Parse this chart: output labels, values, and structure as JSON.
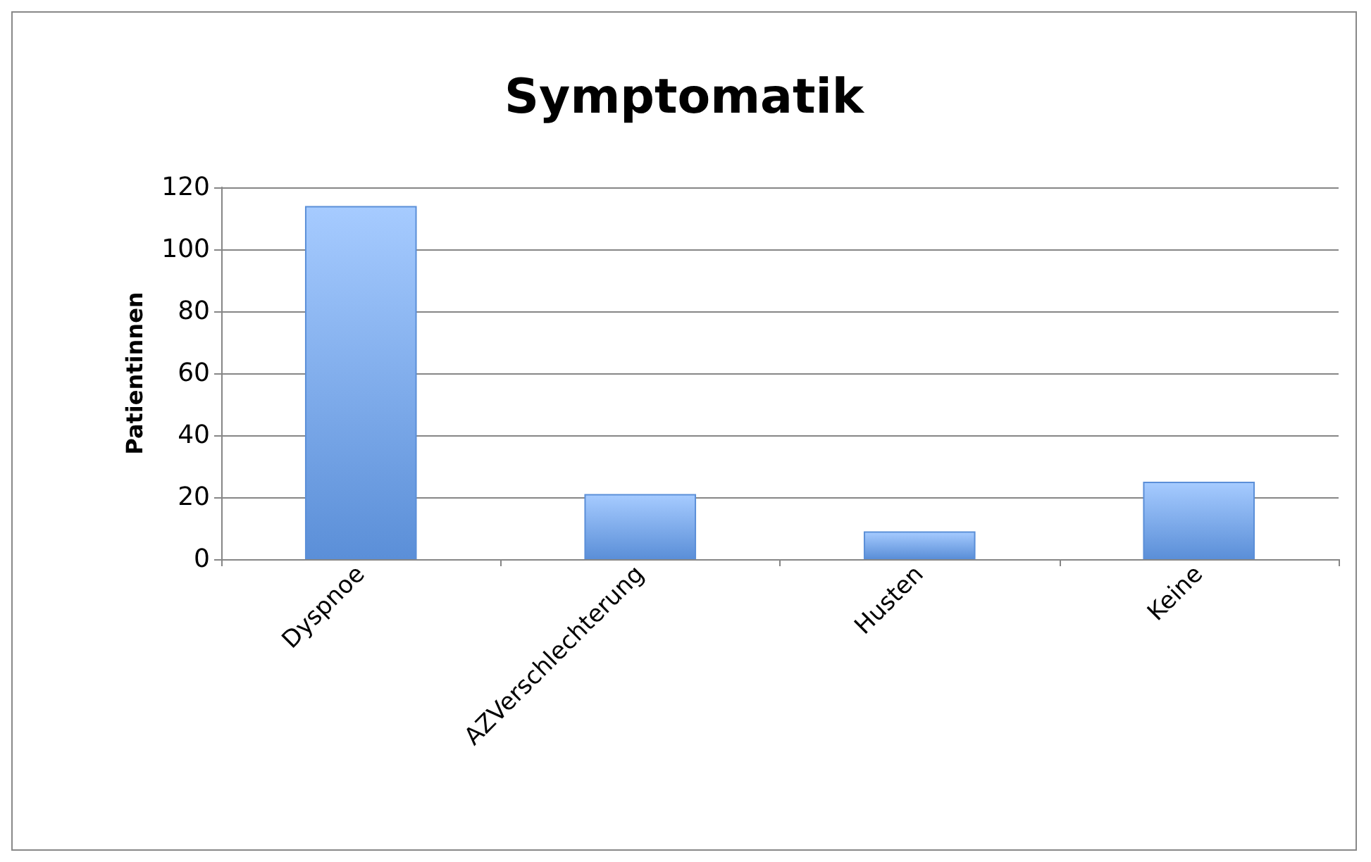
{
  "chart_data": {
    "type": "bar",
    "title": "Symptomatik",
    "ylabel": "Patientinnen",
    "categories": [
      "Dyspnoe",
      "AZVerschlechterung",
      "Husten",
      "Keine"
    ],
    "values": [
      114,
      21,
      9,
      25
    ],
    "color": "#5b8fd8",
    "ylim": [
      0,
      120
    ],
    "yticks": [
      0,
      20,
      40,
      60,
      80,
      100,
      120
    ],
    "grid": "y"
  }
}
